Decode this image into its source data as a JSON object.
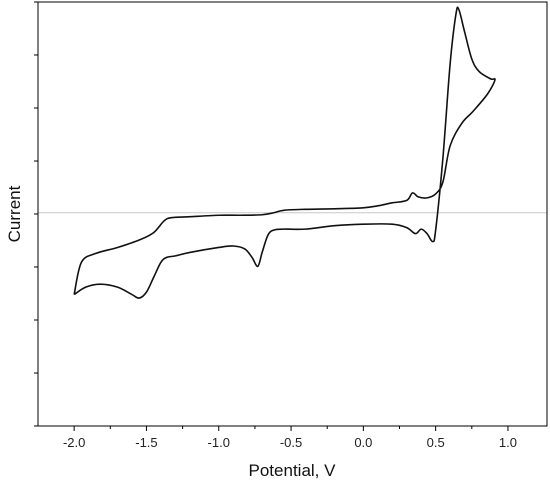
{
  "chart_data": {
    "type": "line",
    "title": "",
    "xlabel": "Potential, V",
    "ylabel": "Current",
    "xlim": [
      -2.25,
      1.27
    ],
    "ylim": [
      -4.3,
      4.25
    ],
    "x_ticks": [
      -2.0,
      -1.5,
      -1.0,
      -0.5,
      0.0,
      0.5,
      1.0
    ],
    "x_tick_labels": [
      "-2.0",
      "-1.5",
      "-1.0",
      "-0.5",
      "0.0",
      "0.5",
      "1.0"
    ],
    "y_tick_labels_shown": false,
    "grid": false,
    "zero_line": true,
    "series": [
      {
        "name": "",
        "color": "#111111",
        "points": [
          [
            -2.0,
            -1.65
          ],
          [
            -1.92,
            -1.5
          ],
          [
            -1.82,
            -1.44
          ],
          [
            -1.7,
            -1.5
          ],
          [
            -1.6,
            -1.65
          ],
          [
            -1.55,
            -1.72
          ],
          [
            -1.5,
            -1.6
          ],
          [
            -1.45,
            -1.3
          ],
          [
            -1.4,
            -1.0
          ],
          [
            -1.36,
            -0.9
          ],
          [
            -1.3,
            -0.87
          ],
          [
            -1.2,
            -0.8
          ],
          [
            -1.0,
            -0.7
          ],
          [
            -0.9,
            -0.67
          ],
          [
            -0.82,
            -0.73
          ],
          [
            -0.77,
            -0.9
          ],
          [
            -0.73,
            -1.08
          ],
          [
            -0.7,
            -0.8
          ],
          [
            -0.66,
            -0.45
          ],
          [
            -0.62,
            -0.35
          ],
          [
            -0.55,
            -0.33
          ],
          [
            -0.4,
            -0.33
          ],
          [
            -0.2,
            -0.26
          ],
          [
            0.0,
            -0.23
          ],
          [
            0.2,
            -0.23
          ],
          [
            0.3,
            -0.3
          ],
          [
            0.36,
            -0.42
          ],
          [
            0.4,
            -0.33
          ],
          [
            0.44,
            -0.42
          ],
          [
            0.48,
            -0.58
          ],
          [
            0.5,
            -0.35
          ],
          [
            0.55,
            1.1
          ],
          [
            0.6,
            3.0
          ],
          [
            0.64,
            4.0
          ],
          [
            0.66,
            4.1
          ],
          [
            0.7,
            3.65
          ],
          [
            0.75,
            3.1
          ],
          [
            0.8,
            2.85
          ],
          [
            0.88,
            2.7
          ],
          [
            0.91,
            2.68
          ],
          [
            0.86,
            2.4
          ],
          [
            0.76,
            2.05
          ],
          [
            0.68,
            1.8
          ],
          [
            0.6,
            1.35
          ],
          [
            0.55,
            0.62
          ],
          [
            0.5,
            0.38
          ],
          [
            0.44,
            0.3
          ],
          [
            0.38,
            0.32
          ],
          [
            0.34,
            0.4
          ],
          [
            0.3,
            0.25
          ],
          [
            0.2,
            0.2
          ],
          [
            0.1,
            0.14
          ],
          [
            0.0,
            0.1
          ],
          [
            -0.2,
            0.08
          ],
          [
            -0.4,
            0.07
          ],
          [
            -0.55,
            0.05
          ],
          [
            -0.62,
            0.0
          ],
          [
            -0.7,
            -0.04
          ],
          [
            -0.85,
            -0.05
          ],
          [
            -1.0,
            -0.05
          ],
          [
            -1.2,
            -0.08
          ],
          [
            -1.33,
            -0.1
          ],
          [
            -1.38,
            -0.17
          ],
          [
            -1.45,
            -0.4
          ],
          [
            -1.55,
            -0.55
          ],
          [
            -1.7,
            -0.7
          ],
          [
            -1.85,
            -0.82
          ],
          [
            -1.95,
            -1.0
          ],
          [
            -2.0,
            -1.65
          ]
        ]
      }
    ]
  }
}
